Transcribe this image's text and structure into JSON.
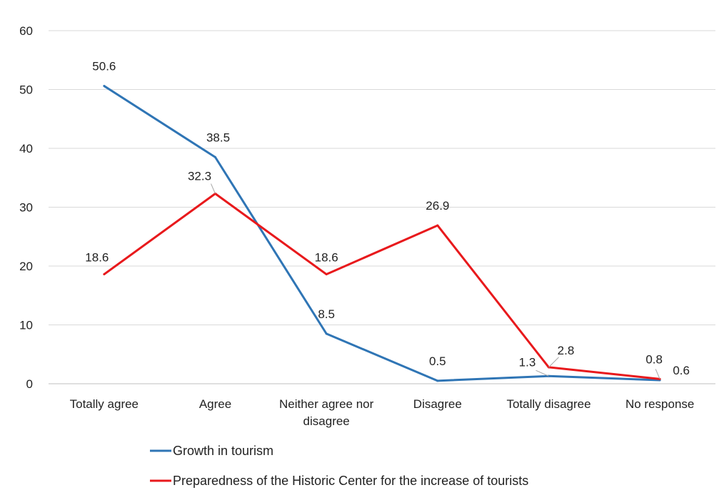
{
  "chart_data": {
    "type": "line",
    "categories": [
      "Totally agree",
      "Agree",
      "Neither agree nor disagree",
      "Disagree",
      "Totally disagree",
      "No response"
    ],
    "category_lines": [
      [
        "Totally agree"
      ],
      [
        "Agree"
      ],
      [
        "Neither agree nor",
        "disagree"
      ],
      [
        "Disagree"
      ],
      [
        "Totally disagree"
      ],
      [
        "No response"
      ]
    ],
    "series": [
      {
        "name": "Growth in tourism",
        "color": "#2F75B5",
        "values": [
          50.6,
          38.5,
          8.5,
          0.5,
          1.3,
          0.6
        ]
      },
      {
        "name": "Preparedness of the Historic Center for the increase of tourists",
        "color": "#E8191C",
        "values": [
          18.6,
          32.3,
          18.6,
          26.9,
          2.8,
          0.8
        ]
      }
    ],
    "data_labels": [
      [
        "50.6",
        "38.5",
        "8.5",
        "0.5",
        "1.3",
        "0.6"
      ],
      [
        "18.6",
        "32.3",
        "18.6",
        "26.9",
        "2.8",
        "0.8"
      ]
    ],
    "yticks": [
      "0",
      "10",
      "20",
      "30",
      "40",
      "50",
      "60"
    ],
    "ylim": [
      0,
      60
    ],
    "grid": true,
    "legend_position": "bottom"
  }
}
